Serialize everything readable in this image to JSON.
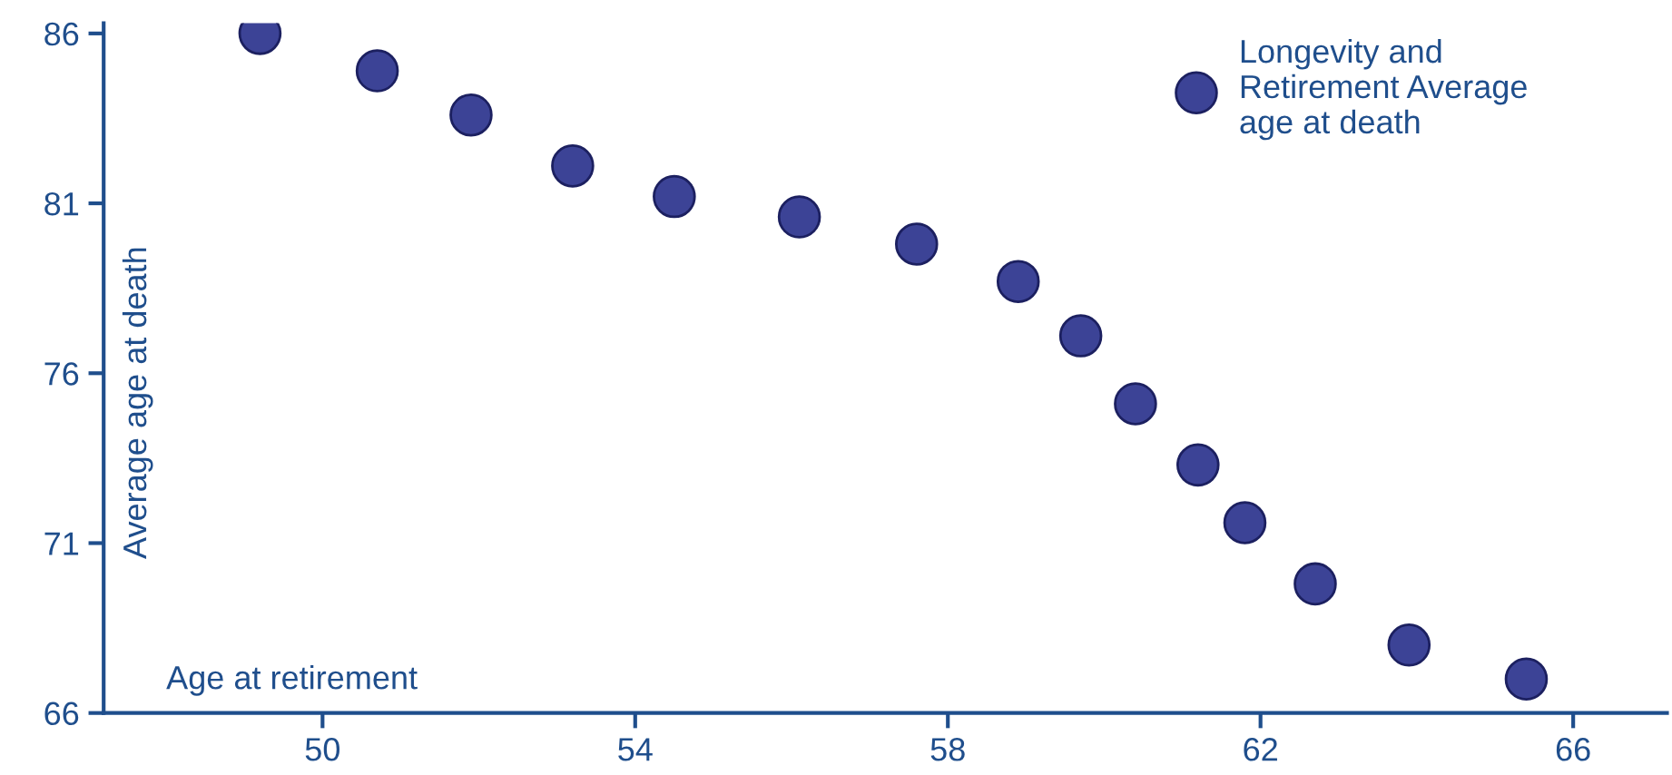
{
  "chart_data": {
    "type": "scatter",
    "xlabel": "Age at retirement",
    "ylabel": "Average age at death",
    "x": [
      49.2,
      50.7,
      51.9,
      53.2,
      54.5,
      56.1,
      57.6,
      58.9,
      59.7,
      60.4,
      61.2,
      61.8,
      62.7,
      63.9,
      65.4
    ],
    "series": [
      {
        "name": "Longevity and Retirement Average age at death",
        "color": "#3c4396",
        "values": [
          86.0,
          84.9,
          83.6,
          82.1,
          81.2,
          80.6,
          79.8,
          78.7,
          77.1,
          75.1,
          73.3,
          71.6,
          69.8,
          68.0,
          67.0
        ]
      }
    ],
    "xlim": [
      47.2,
      67.2
    ],
    "ylim": [
      66,
      86.3
    ],
    "xticks": [
      50,
      54,
      58,
      62,
      66
    ],
    "yticks": [
      66,
      71,
      76,
      81,
      86
    ],
    "grid": false,
    "legend": "top right",
    "marker": "circle"
  }
}
